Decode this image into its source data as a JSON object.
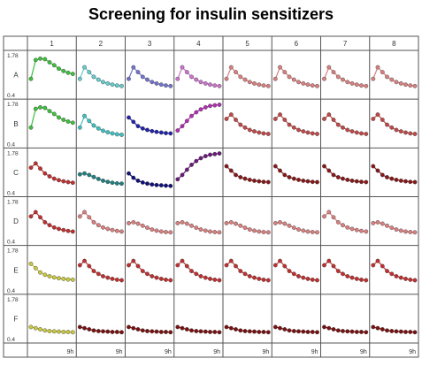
{
  "chart_data": {
    "type": "line",
    "title": "Screening for insulin sensitizers",
    "columns": [
      "1",
      "2",
      "3",
      "4",
      "5",
      "6",
      "7",
      "8"
    ],
    "rows": [
      "A",
      "B",
      "C",
      "D",
      "E",
      "F"
    ],
    "y_axis_labels": {
      "top": "1.78",
      "bottom": "0.4"
    },
    "ylim": [
      0.4,
      1.78
    ],
    "x_end_label": "9h",
    "x_time_points": [
      0,
      1,
      2,
      3,
      4,
      5,
      6,
      7,
      8,
      9
    ],
    "profiles": {
      "rise_plateau": [
        0.95,
        1.6,
        1.65,
        1.63,
        1.52,
        1.42,
        1.3,
        1.22,
        1.16,
        1.12
      ],
      "peak_decay": [
        0.95,
        1.35,
        1.18,
        1.02,
        0.92,
        0.84,
        0.79,
        0.75,
        0.72,
        0.7
      ],
      "rise_saturate": [
        0.85,
        1.0,
        1.18,
        1.35,
        1.48,
        1.58,
        1.65,
        1.7,
        1.72,
        1.74
      ],
      "flat_decay": [
        1.02,
        1.05,
        1.0,
        0.93,
        0.86,
        0.8,
        0.76,
        0.73,
        0.71,
        0.7
      ],
      "fast_decay": [
        1.05,
        0.9,
        0.8,
        0.74,
        0.7,
        0.67,
        0.65,
        0.64,
        0.63,
        0.62
      ],
      "steady_decay": [
        1.3,
        1.15,
        1.0,
        0.92,
        0.87,
        0.83,
        0.8,
        0.78,
        0.76,
        0.75
      ],
      "flat_low": [
        0.8,
        0.76,
        0.72,
        0.68,
        0.66,
        0.65,
        0.64,
        0.63,
        0.63,
        0.62
      ],
      "early_peak": [
        1.25,
        1.4,
        1.22,
        1.05,
        0.95,
        0.87,
        0.82,
        0.78,
        0.75,
        0.73
      ]
    },
    "cells": [
      [
        {
          "p": "rise_plateau",
          "color": "#3fbf3f"
        },
        {
          "p": "peak_decay",
          "color": "#66cccc"
        },
        {
          "p": "peak_decay",
          "color": "#7373cc"
        },
        {
          "p": "peak_decay",
          "color": "#cc73cc"
        },
        {
          "p": "peak_decay",
          "color": "#d98080"
        },
        {
          "p": "peak_decay",
          "color": "#d98080"
        },
        {
          "p": "peak_decay",
          "color": "#d98080"
        },
        {
          "p": "peak_decay",
          "color": "#d98080"
        }
      ],
      [
        {
          "p": "rise_plateau",
          "color": "#3fbf3f"
        },
        {
          "p": "peak_decay",
          "color": "#40c0c0"
        },
        {
          "p": "steady_decay",
          "color": "#2222aa"
        },
        {
          "p": "rise_saturate",
          "color": "#b030b0"
        },
        {
          "p": "early_peak",
          "color": "#c04848"
        },
        {
          "p": "early_peak",
          "color": "#c04848"
        },
        {
          "p": "early_peak",
          "color": "#c04848"
        },
        {
          "p": "early_peak",
          "color": "#c04848"
        }
      ],
      [
        {
          "p": "early_peak",
          "color": "#c03030"
        },
        {
          "p": "flat_decay",
          "color": "#208080"
        },
        {
          "p": "fast_decay",
          "color": "#10107a"
        },
        {
          "p": "rise_saturate",
          "color": "#6a1a7a"
        },
        {
          "p": "steady_decay",
          "color": "#881818"
        },
        {
          "p": "steady_decay",
          "color": "#881818"
        },
        {
          "p": "steady_decay",
          "color": "#881818"
        },
        {
          "p": "steady_decay",
          "color": "#881818"
        }
      ],
      [
        {
          "p": "early_peak",
          "color": "#c03030"
        },
        {
          "p": "early_peak",
          "color": "#d98080"
        },
        {
          "p": "flat_decay",
          "color": "#d98080"
        },
        {
          "p": "flat_decay",
          "color": "#d98080"
        },
        {
          "p": "flat_decay",
          "color": "#d98080"
        },
        {
          "p": "flat_decay",
          "color": "#d98080"
        },
        {
          "p": "early_peak",
          "color": "#d98080"
        },
        {
          "p": "flat_decay",
          "color": "#d98080"
        }
      ],
      [
        {
          "p": "steady_decay",
          "color": "#c8c840"
        },
        {
          "p": "early_peak",
          "color": "#c03030"
        },
        {
          "p": "early_peak",
          "color": "#c03030"
        },
        {
          "p": "early_peak",
          "color": "#c03030"
        },
        {
          "p": "early_peak",
          "color": "#c03030"
        },
        {
          "p": "early_peak",
          "color": "#c03030"
        },
        {
          "p": "early_peak",
          "color": "#c03030"
        },
        {
          "p": "early_peak",
          "color": "#c03030"
        }
      ],
      [
        {
          "p": "flat_low",
          "color": "#c8c840"
        },
        {
          "p": "flat_low",
          "color": "#7a1010"
        },
        {
          "p": "flat_low",
          "color": "#7a1010"
        },
        {
          "p": "flat_low",
          "color": "#7a1010"
        },
        {
          "p": "flat_low",
          "color": "#7a1010"
        },
        {
          "p": "flat_low",
          "color": "#7a1010"
        },
        {
          "p": "flat_low",
          "color": "#7a1010"
        },
        {
          "p": "flat_low",
          "color": "#7a1010"
        }
      ]
    ],
    "grid": true
  }
}
